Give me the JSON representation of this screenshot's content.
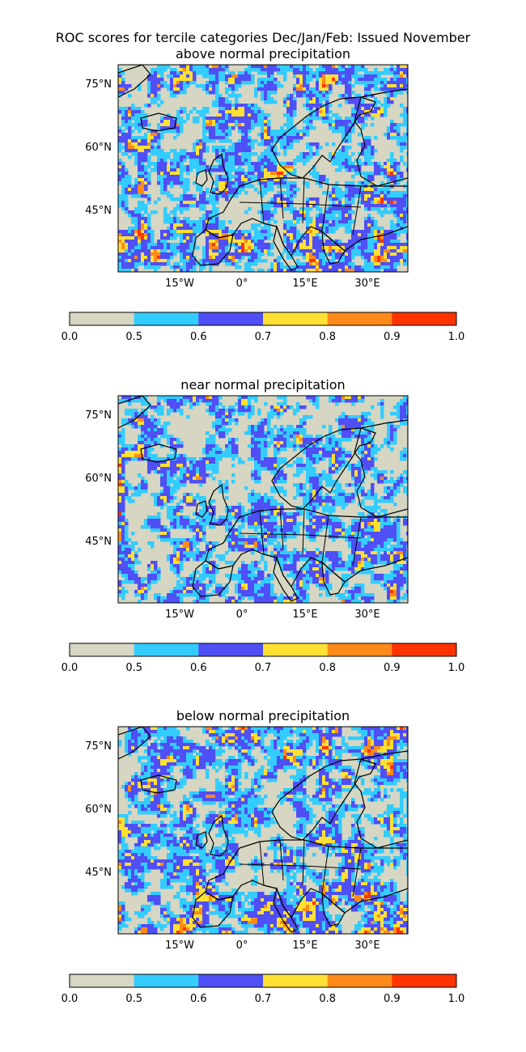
{
  "figure": {
    "title": "ROC scores for tercile categories Dec/Jan/Feb: Issued November"
  },
  "panels": [
    {
      "id": "above",
      "subtitle": "above normal precipitation"
    },
    {
      "id": "near",
      "subtitle": "near normal precipitation"
    },
    {
      "id": "below",
      "subtitle": "below normal precipitation"
    }
  ],
  "axes": {
    "lat_labels": [
      "75°N",
      "60°N",
      "45°N"
    ],
    "lon_labels": [
      "15°W",
      "0°",
      "15°E",
      "30°E"
    ]
  },
  "colorbar": {
    "tick_labels": [
      "0.0",
      "0.5",
      "0.6",
      "0.7",
      "0.8",
      "0.9",
      "1.0"
    ],
    "bins": [
      {
        "from": 0.0,
        "to": 0.5,
        "color": "#d6d6c2"
      },
      {
        "from": 0.5,
        "to": 0.6,
        "color": "#33ccff"
      },
      {
        "from": 0.6,
        "to": 0.7,
        "color": "#4f4ff5"
      },
      {
        "from": 0.7,
        "to": 0.8,
        "color": "#ffe033"
      },
      {
        "from": 0.8,
        "to": 0.9,
        "color": "#ff8a1a"
      },
      {
        "from": 0.9,
        "to": 1.0,
        "color": "#ff3300"
      }
    ]
  }
}
